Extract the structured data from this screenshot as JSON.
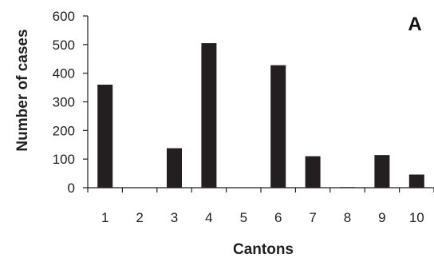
{
  "chart_data": {
    "type": "bar",
    "panel_label": "A",
    "xlabel": "Cantons",
    "ylabel": "Number of cases",
    "categories": [
      "1",
      "2",
      "3",
      "4",
      "5",
      "6",
      "7",
      "8",
      "9",
      "10"
    ],
    "values": [
      360,
      0,
      138,
      505,
      0,
      428,
      110,
      2,
      114,
      46
    ],
    "ylim": [
      0,
      600
    ],
    "yticks": [
      "0",
      "100",
      "200",
      "300",
      "400",
      "500",
      "600"
    ],
    "grid": false,
    "legend": "none",
    "bar_color": "#231f20",
    "axis_color": "#231f20"
  }
}
